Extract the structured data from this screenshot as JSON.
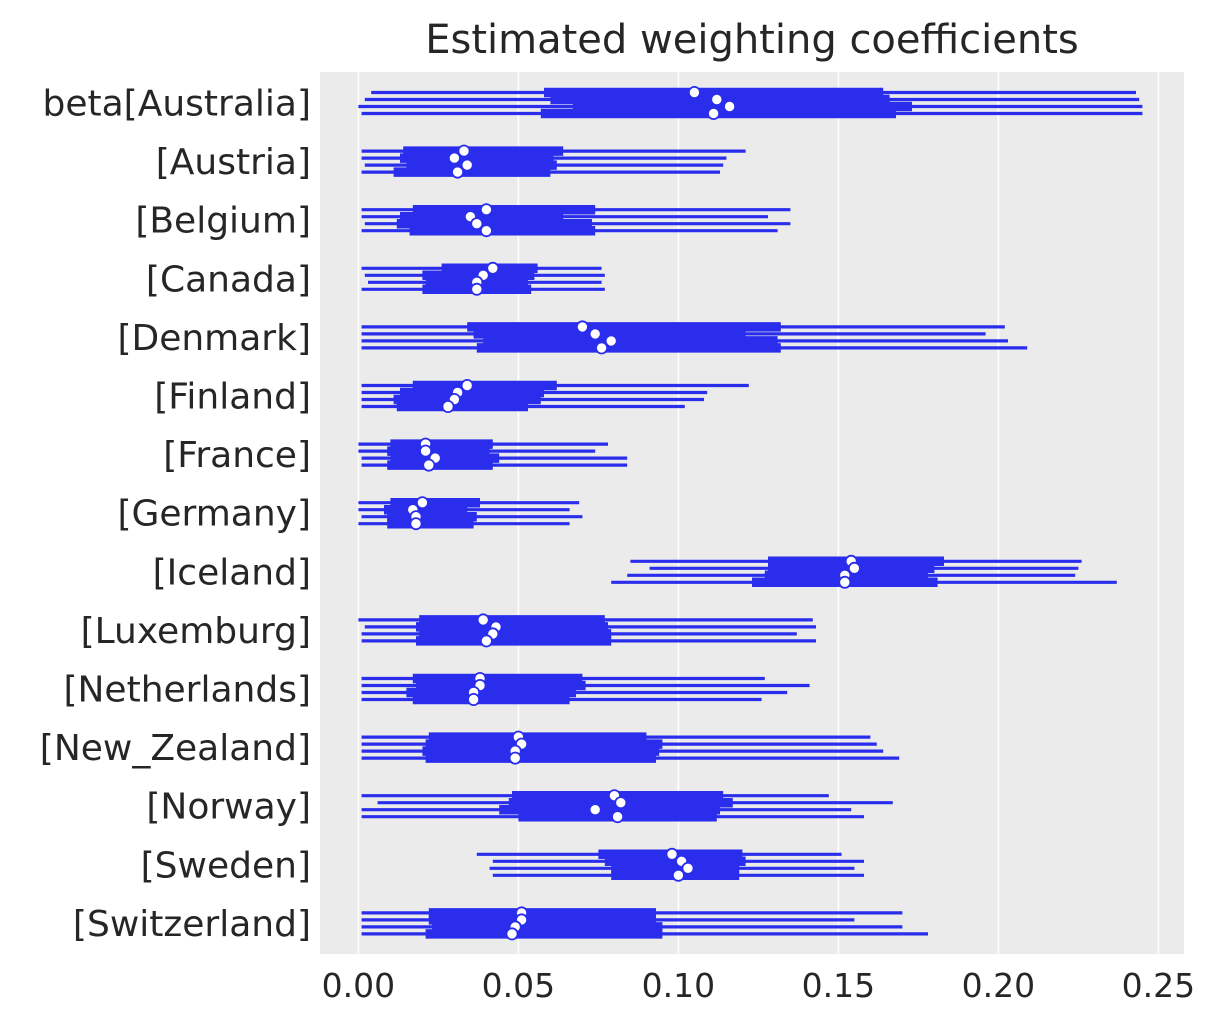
{
  "chart_data": {
    "type": "forest",
    "title": "Estimated weighting coefficients",
    "xlabel": "",
    "ylabel": "",
    "xlim": [
      -0.012,
      0.258
    ],
    "xticks": [
      0.0,
      0.05,
      0.1,
      0.15,
      0.2,
      0.25
    ],
    "xtick_labels": [
      "0.00",
      "0.05",
      "0.10",
      "0.15",
      "0.20",
      "0.25"
    ],
    "grid": true,
    "background": "#ebebeb",
    "series_color": "#2a2eec",
    "chains": 4,
    "categories": [
      "beta[Australia]",
      "[Austria]",
      "[Belgium]",
      "[Canada]",
      "[Denmark]",
      "[Finland]",
      "[France]",
      "[Germany]",
      "[Iceland]",
      "[Luxemburg]",
      "[Netherlands]",
      "[New_Zealand]",
      "[Norway]",
      "[Sweden]",
      "[Switzerland]"
    ],
    "series": [
      {
        "chains": [
          [
            0.004,
            0.058,
            0.105,
            0.164,
            0.243
          ],
          [
            0.002,
            0.06,
            0.112,
            0.166,
            0.244
          ],
          [
            0.0,
            0.067,
            0.116,
            0.173,
            0.245
          ],
          [
            0.001,
            0.057,
            0.111,
            0.168,
            0.245
          ]
        ]
      },
      {
        "chains": [
          [
            0.001,
            0.014,
            0.033,
            0.064,
            0.121
          ],
          [
            0.001,
            0.013,
            0.03,
            0.061,
            0.115
          ],
          [
            0.002,
            0.015,
            0.034,
            0.062,
            0.114
          ],
          [
            0.001,
            0.011,
            0.031,
            0.06,
            0.113
          ]
        ]
      },
      {
        "chains": [
          [
            0.001,
            0.017,
            0.04,
            0.074,
            0.135
          ],
          [
            0.001,
            0.013,
            0.035,
            0.064,
            0.128
          ],
          [
            0.002,
            0.012,
            0.037,
            0.073,
            0.135
          ],
          [
            0.001,
            0.016,
            0.04,
            0.074,
            0.131
          ]
        ]
      },
      {
        "chains": [
          [
            0.001,
            0.026,
            0.042,
            0.056,
            0.076
          ],
          [
            0.002,
            0.02,
            0.039,
            0.055,
            0.077
          ],
          [
            0.003,
            0.021,
            0.037,
            0.053,
            0.076
          ],
          [
            0.001,
            0.02,
            0.037,
            0.054,
            0.077
          ]
        ]
      },
      {
        "chains": [
          [
            0.001,
            0.034,
            0.07,
            0.132,
            0.202
          ],
          [
            0.001,
            0.036,
            0.074,
            0.121,
            0.196
          ],
          [
            0.001,
            0.039,
            0.079,
            0.131,
            0.203
          ],
          [
            0.001,
            0.037,
            0.076,
            0.132,
            0.209
          ]
        ]
      },
      {
        "chains": [
          [
            0.001,
            0.017,
            0.034,
            0.062,
            0.122
          ],
          [
            0.001,
            0.013,
            0.031,
            0.058,
            0.109
          ],
          [
            0.001,
            0.011,
            0.03,
            0.057,
            0.108
          ],
          [
            0.001,
            0.012,
            0.028,
            0.053,
            0.102
          ]
        ]
      },
      {
        "chains": [
          [
            0.0,
            0.01,
            0.021,
            0.042,
            0.078
          ],
          [
            0.0,
            0.009,
            0.021,
            0.041,
            0.074
          ],
          [
            0.001,
            0.01,
            0.024,
            0.044,
            0.084
          ],
          [
            0.001,
            0.009,
            0.022,
            0.042,
            0.084
          ]
        ]
      },
      {
        "chains": [
          [
            0.0,
            0.01,
            0.02,
            0.038,
            0.069
          ],
          [
            0.0,
            0.008,
            0.017,
            0.034,
            0.066
          ],
          [
            0.001,
            0.009,
            0.018,
            0.037,
            0.07
          ],
          [
            0.0,
            0.009,
            0.018,
            0.036,
            0.066
          ]
        ]
      },
      {
        "chains": [
          [
            0.085,
            0.128,
            0.154,
            0.183,
            0.226
          ],
          [
            0.091,
            0.128,
            0.155,
            0.18,
            0.225
          ],
          [
            0.084,
            0.127,
            0.152,
            0.178,
            0.224
          ],
          [
            0.079,
            0.123,
            0.152,
            0.181,
            0.237
          ]
        ]
      },
      {
        "chains": [
          [
            0.0,
            0.019,
            0.039,
            0.077,
            0.142
          ],
          [
            0.002,
            0.018,
            0.043,
            0.078,
            0.143
          ],
          [
            0.001,
            0.019,
            0.042,
            0.079,
            0.137
          ],
          [
            0.001,
            0.018,
            0.04,
            0.079,
            0.143
          ]
        ]
      },
      {
        "chains": [
          [
            0.001,
            0.017,
            0.038,
            0.07,
            0.127
          ],
          [
            0.001,
            0.018,
            0.038,
            0.071,
            0.141
          ],
          [
            0.001,
            0.015,
            0.036,
            0.068,
            0.134
          ],
          [
            0.001,
            0.017,
            0.036,
            0.066,
            0.126
          ]
        ]
      },
      {
        "chains": [
          [
            0.001,
            0.022,
            0.05,
            0.09,
            0.16
          ],
          [
            0.001,
            0.021,
            0.051,
            0.095,
            0.162
          ],
          [
            0.001,
            0.02,
            0.049,
            0.094,
            0.164
          ],
          [
            0.001,
            0.021,
            0.049,
            0.093,
            0.169
          ]
        ]
      },
      {
        "chains": [
          [
            0.001,
            0.048,
            0.08,
            0.114,
            0.147
          ],
          [
            0.006,
            0.047,
            0.082,
            0.117,
            0.167
          ],
          [
            0.001,
            0.044,
            0.074,
            0.113,
            0.154
          ],
          [
            0.001,
            0.05,
            0.081,
            0.112,
            0.158
          ]
        ]
      },
      {
        "chains": [
          [
            0.037,
            0.075,
            0.098,
            0.12,
            0.151
          ],
          [
            0.042,
            0.077,
            0.101,
            0.121,
            0.158
          ],
          [
            0.041,
            0.079,
            0.103,
            0.119,
            0.155
          ],
          [
            0.042,
            0.079,
            0.1,
            0.119,
            0.158
          ]
        ]
      },
      {
        "chains": [
          [
            0.001,
            0.022,
            0.051,
            0.093,
            0.17
          ],
          [
            0.001,
            0.022,
            0.051,
            0.093,
            0.155
          ],
          [
            0.001,
            0.023,
            0.049,
            0.095,
            0.17
          ],
          [
            0.001,
            0.021,
            0.048,
            0.095,
            0.178
          ]
        ]
      }
    ]
  }
}
